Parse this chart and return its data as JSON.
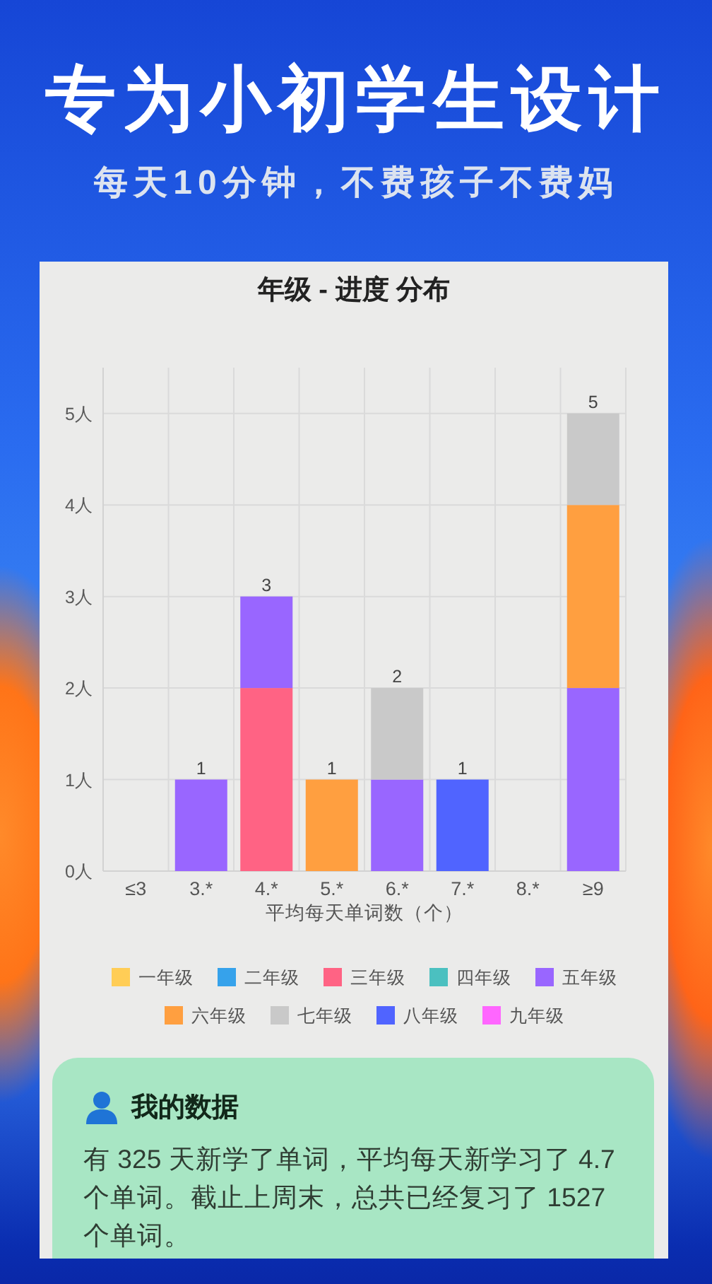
{
  "chart_data": [
    {
      "type": "other",
      "title": "专为小初学生设计",
      "subtitle": "每天10分钟，不费孩子不费妈"
    },
    {
      "type": "bar",
      "title": "年级 - 进度 分布",
      "xlabel": "平均每天单词数（个）",
      "categories": [
        "≤3",
        "3.*",
        "4.*",
        "5.*",
        "6.*",
        "7.*",
        "8.*",
        "≥9"
      ],
      "stacked": true,
      "series": [
        {
          "name": "一年级",
          "color": "#ffcd56",
          "values": [
            0,
            0,
            0,
            0,
            0,
            0,
            0,
            0
          ]
        },
        {
          "name": "二年级",
          "color": "#36a2eb",
          "values": [
            0,
            0,
            0,
            0,
            0,
            0,
            0,
            0
          ]
        },
        {
          "name": "三年级",
          "color": "#ff6384",
          "values": [
            0,
            0,
            2,
            0,
            0,
            0,
            0,
            0
          ]
        },
        {
          "name": "四年级",
          "color": "#4bc0c0",
          "values": [
            0,
            0,
            0,
            0,
            0,
            0,
            0,
            0
          ]
        },
        {
          "name": "五年级",
          "color": "#9966ff",
          "values": [
            0,
            1,
            1,
            0,
            1,
            0,
            0,
            2
          ]
        },
        {
          "name": "六年级",
          "color": "#ff9f40",
          "values": [
            0,
            0,
            0,
            1,
            0,
            0,
            0,
            2
          ]
        },
        {
          "name": "七年级",
          "color": "#c9c9c9",
          "values": [
            0,
            0,
            0,
            0,
            1,
            0,
            0,
            1
          ]
        },
        {
          "name": "八年级",
          "color": "#5064ff",
          "values": [
            0,
            0,
            0,
            0,
            0,
            1,
            0,
            0
          ]
        },
        {
          "name": "九年级",
          "color": "#ff66ff",
          "values": [
            0,
            0,
            0,
            0,
            0,
            0,
            0,
            0
          ]
        }
      ],
      "ylim": [
        0,
        5.5
      ],
      "yticks": [
        {
          "value": 0,
          "label": "0人"
        },
        {
          "value": 1,
          "label": "1人"
        },
        {
          "value": 2,
          "label": "2人"
        },
        {
          "value": 3,
          "label": "3人"
        },
        {
          "value": 4,
          "label": "4人"
        },
        {
          "value": 5,
          "label": "5人"
        }
      ],
      "grid": true,
      "legend": "bottom",
      "totals": [
        null,
        "1",
        "3",
        "1",
        "2",
        "1",
        null,
        "5"
      ]
    },
    {
      "type": "other",
      "title": "我的数据",
      "annotations": [
        "有 325 天新学了单词，平均每天新学习了 4.7 个单词。截止上周末，总共已经复习了 1527 个单词。"
      ]
    }
  ]
}
